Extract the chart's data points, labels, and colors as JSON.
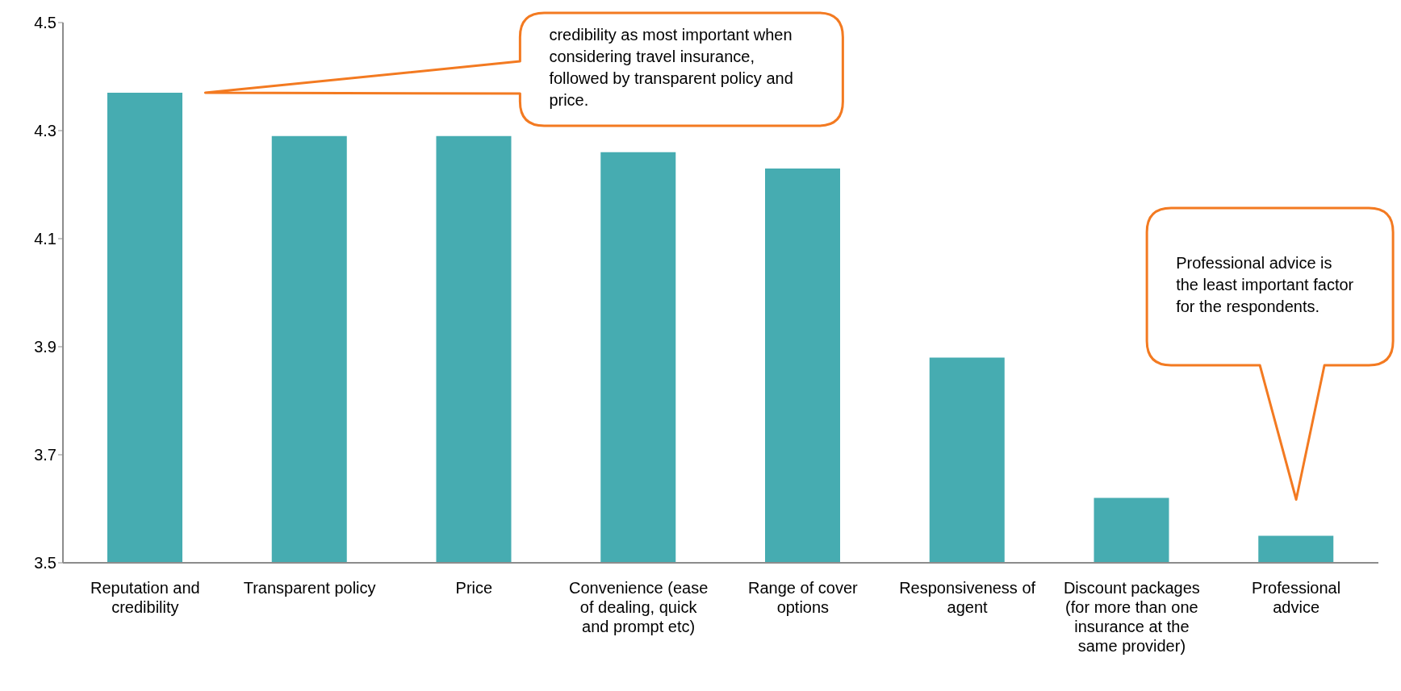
{
  "chart_data": {
    "type": "bar",
    "categories": [
      "Reputation and credibility",
      "Transparent policy",
      "Price",
      "Convenience (ease of dealing, quick and prompt etc)",
      "Range of cover options",
      "Responsiveness of agent",
      "Discount packages (for more than one insurance at the same provider)",
      "Professional advice"
    ],
    "values": [
      4.37,
      4.29,
      4.29,
      4.26,
      4.23,
      3.88,
      3.62,
      3.55
    ],
    "color": "#46acb1",
    "ylim": [
      3.5,
      4.5
    ],
    "yticks": [
      3.5,
      3.7,
      3.9,
      4.1,
      4.3,
      4.5
    ],
    "grid": false,
    "legend": false,
    "annotations": [
      "credibility as most important when considering travel insurance, followed by transparent policy and price.",
      "Professional advice is the least important factor for the respondents."
    ]
  }
}
